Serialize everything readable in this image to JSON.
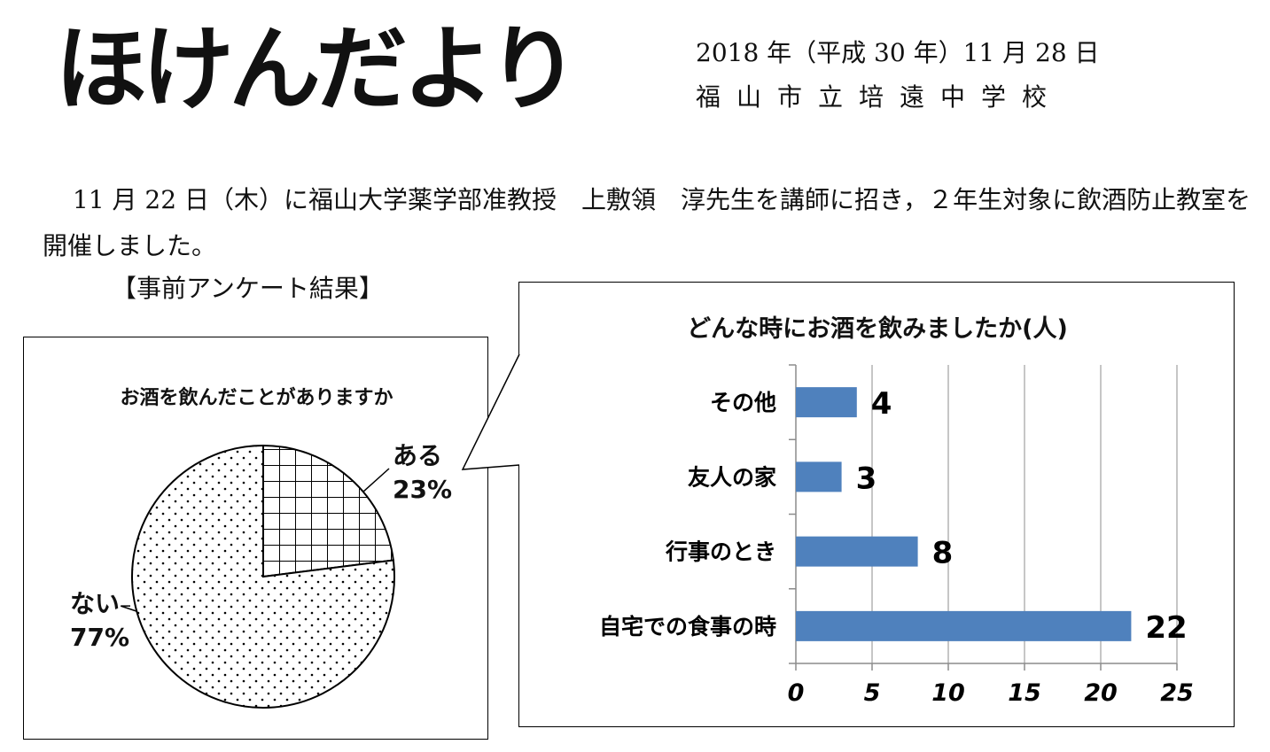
{
  "header": {
    "title": "ほけんだより",
    "date": "2018 年（平成 30 年）11 月 28 日",
    "school": "福山市立培遠中学校"
  },
  "intro": {
    "text": "11 月 22 日（木）に福山大学薬学部准教授　上敷領　淳先生を講師に招き，２年生対象に飲酒防止教室を開催しました。"
  },
  "survey_heading": "【事前アンケート結果】",
  "chart_data": [
    {
      "type": "pie",
      "title": "お酒を飲んだことがありますか",
      "slices": [
        {
          "label": "ある",
          "percent_label": "23%",
          "value": 23,
          "pattern": "grid"
        },
        {
          "label": "ない",
          "percent_label": "77%",
          "value": 77,
          "pattern": "dots"
        }
      ]
    },
    {
      "type": "bar",
      "orientation": "horizontal",
      "title": "どんな時にお酒を飲みましたか(人)",
      "categories": [
        "その他",
        "友人の家",
        "行事のとき",
        "自宅での食事の時"
      ],
      "values": [
        4,
        3,
        8,
        22
      ],
      "xlim": [
        0,
        25
      ],
      "x_ticks": [
        0,
        5,
        10,
        15,
        20,
        25
      ],
      "grid": true,
      "bar_color": "#4f81bd"
    }
  ]
}
